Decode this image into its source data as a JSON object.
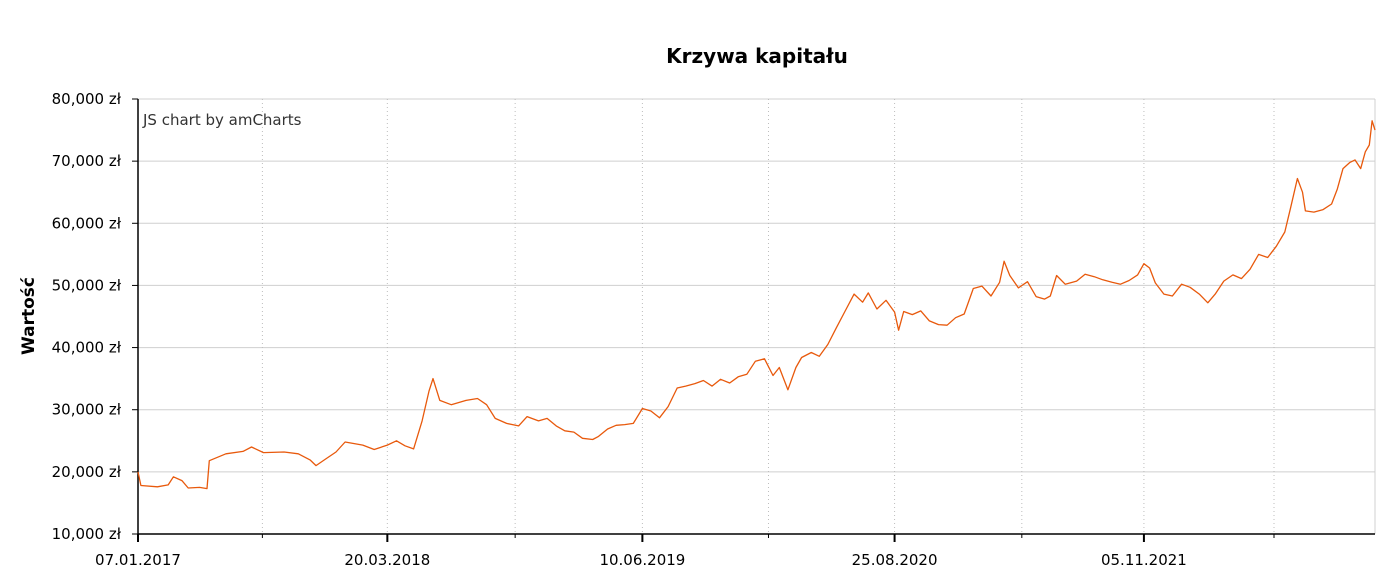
{
  "chart_data": {
    "type": "line",
    "title": "Krzywa kapitału",
    "xlabel": "",
    "ylabel": "Wartość",
    "credit": "JS chart by amCharts",
    "ylim": [
      10000,
      80000
    ],
    "y_ticks": [
      {
        "value": 80000,
        "label": "80,000 zł"
      },
      {
        "value": 70000,
        "label": "70,000 zł"
      },
      {
        "value": 60000,
        "label": "60,000 zł"
      },
      {
        "value": 50000,
        "label": "50,000 zł"
      },
      {
        "value": 40000,
        "label": "40,000 zł"
      },
      {
        "value": 30000,
        "label": "30,000 zł"
      },
      {
        "value": 20000,
        "label": "20,000 zł"
      },
      {
        "value": 10000,
        "label": "10,000 zł"
      }
    ],
    "xlim": [
      "2017-01-07",
      "2022-12-15"
    ],
    "x_ticks": [
      {
        "date": "2017-01-07",
        "label": "07.01.2017"
      },
      {
        "date": "2018-03-20",
        "label": "20.03.2018"
      },
      {
        "date": "2019-06-10",
        "label": "10.06.2019"
      },
      {
        "date": "2020-08-25",
        "label": "25.08.2020"
      },
      {
        "date": "2021-11-05",
        "label": "05.11.2021"
      }
    ],
    "minor_grid_dates": [
      "2017-08-13",
      "2018-10-30",
      "2020-01-17",
      "2021-04-05",
      "2022-06-21"
    ],
    "grid": true,
    "line_color": "#e8590c",
    "series": [
      {
        "name": "",
        "points": [
          [
            "2017-01-07",
            20000
          ],
          [
            "2017-01-12",
            17800
          ],
          [
            "2017-02-10",
            17600
          ],
          [
            "2017-03-01",
            17900
          ],
          [
            "2017-03-10",
            19200
          ],
          [
            "2017-03-25",
            18600
          ],
          [
            "2017-04-05",
            17400
          ],
          [
            "2017-04-25",
            17500
          ],
          [
            "2017-05-08",
            17300
          ],
          [
            "2017-05-12",
            21800
          ],
          [
            "2017-06-10",
            22900
          ],
          [
            "2017-07-10",
            23300
          ],
          [
            "2017-07-25",
            24000
          ],
          [
            "2017-08-15",
            23100
          ],
          [
            "2017-09-20",
            23200
          ],
          [
            "2017-10-15",
            22900
          ],
          [
            "2017-11-05",
            21900
          ],
          [
            "2017-11-15",
            21000
          ],
          [
            "2017-12-01",
            22000
          ],
          [
            "2017-12-20",
            23200
          ],
          [
            "2018-01-05",
            24800
          ],
          [
            "2018-02-05",
            24300
          ],
          [
            "2018-02-25",
            23600
          ],
          [
            "2018-03-20",
            24300
          ],
          [
            "2018-04-05",
            25000
          ],
          [
            "2018-04-20",
            24200
          ],
          [
            "2018-05-05",
            23700
          ],
          [
            "2018-05-20",
            28200
          ],
          [
            "2018-06-01",
            33000
          ],
          [
            "2018-06-08",
            35000
          ],
          [
            "2018-06-20",
            31500
          ],
          [
            "2018-07-10",
            30800
          ],
          [
            "2018-08-05",
            31500
          ],
          [
            "2018-08-25",
            31800
          ],
          [
            "2018-09-10",
            30800
          ],
          [
            "2018-09-25",
            28600
          ],
          [
            "2018-10-15",
            27800
          ],
          [
            "2018-11-05",
            27400
          ],
          [
            "2018-11-20",
            28900
          ],
          [
            "2018-12-10",
            28200
          ],
          [
            "2018-12-25",
            28600
          ],
          [
            "2019-01-10",
            27400
          ],
          [
            "2019-01-25",
            26600
          ],
          [
            "2019-02-10",
            26400
          ],
          [
            "2019-02-25",
            25400
          ],
          [
            "2019-03-15",
            25200
          ],
          [
            "2019-03-25",
            25700
          ],
          [
            "2019-04-10",
            26900
          ],
          [
            "2019-04-25",
            27500
          ],
          [
            "2019-05-10",
            27600
          ],
          [
            "2019-05-25",
            27800
          ],
          [
            "2019-06-10",
            30200
          ],
          [
            "2019-06-25",
            29800
          ],
          [
            "2019-07-10",
            28700
          ],
          [
            "2019-07-25",
            30500
          ],
          [
            "2019-08-10",
            33500
          ],
          [
            "2019-08-25",
            33800
          ],
          [
            "2019-09-10",
            34200
          ],
          [
            "2019-09-25",
            34700
          ],
          [
            "2019-10-10",
            33800
          ],
          [
            "2019-10-25",
            34900
          ],
          [
            "2019-11-10",
            34300
          ],
          [
            "2019-11-25",
            35300
          ],
          [
            "2019-12-10",
            35700
          ],
          [
            "2019-12-25",
            37800
          ],
          [
            "2020-01-10",
            38200
          ],
          [
            "2020-01-25",
            35500
          ],
          [
            "2020-02-05",
            36800
          ],
          [
            "2020-02-20",
            33200
          ],
          [
            "2020-03-05",
            36800
          ],
          [
            "2020-03-15",
            38400
          ],
          [
            "2020-04-01",
            39200
          ],
          [
            "2020-04-15",
            38600
          ],
          [
            "2020-04-30",
            40500
          ],
          [
            "2020-05-15",
            43200
          ],
          [
            "2020-05-30",
            45800
          ],
          [
            "2020-06-15",
            48600
          ],
          [
            "2020-06-30",
            47300
          ],
          [
            "2020-07-10",
            48800
          ],
          [
            "2020-07-25",
            46200
          ],
          [
            "2020-08-10",
            47600
          ],
          [
            "2020-08-25",
            45700
          ],
          [
            "2020-09-01",
            42800
          ],
          [
            "2020-09-10",
            45800
          ],
          [
            "2020-09-25",
            45300
          ],
          [
            "2020-10-10",
            45900
          ],
          [
            "2020-10-25",
            44300
          ],
          [
            "2020-11-10",
            43700
          ],
          [
            "2020-11-25",
            43600
          ],
          [
            "2020-12-10",
            44800
          ],
          [
            "2020-12-25",
            45400
          ],
          [
            "2021-01-10",
            49500
          ],
          [
            "2021-01-25",
            49900
          ],
          [
            "2021-02-10",
            48300
          ],
          [
            "2021-02-25",
            50500
          ],
          [
            "2021-03-05",
            53900
          ],
          [
            "2021-03-15",
            51600
          ],
          [
            "2021-03-30",
            49600
          ],
          [
            "2021-04-15",
            50600
          ],
          [
            "2021-04-30",
            48200
          ],
          [
            "2021-05-15",
            47800
          ],
          [
            "2021-05-25",
            48300
          ],
          [
            "2021-06-05",
            51600
          ],
          [
            "2021-06-20",
            50200
          ],
          [
            "2021-07-10",
            50700
          ],
          [
            "2021-07-25",
            51800
          ],
          [
            "2021-08-10",
            51400
          ],
          [
            "2021-08-25",
            50900
          ],
          [
            "2021-09-10",
            50500
          ],
          [
            "2021-09-25",
            50200
          ],
          [
            "2021-10-10",
            50800
          ],
          [
            "2021-10-25",
            51700
          ],
          [
            "2021-11-05",
            53500
          ],
          [
            "2021-11-15",
            52800
          ],
          [
            "2021-11-25",
            50400
          ],
          [
            "2021-12-10",
            48600
          ],
          [
            "2021-12-25",
            48300
          ],
          [
            "2022-01-10",
            50200
          ],
          [
            "2022-01-25",
            49700
          ],
          [
            "2022-02-10",
            48600
          ],
          [
            "2022-02-25",
            47200
          ],
          [
            "2022-03-10",
            48600
          ],
          [
            "2022-03-25",
            50700
          ],
          [
            "2022-04-10",
            51700
          ],
          [
            "2022-04-25",
            51100
          ],
          [
            "2022-05-10",
            52600
          ],
          [
            "2022-05-25",
            55000
          ],
          [
            "2022-06-10",
            54500
          ],
          [
            "2022-06-25",
            56300
          ],
          [
            "2022-07-10",
            58600
          ],
          [
            "2022-07-20",
            62500
          ],
          [
            "2022-08-01",
            67200
          ],
          [
            "2022-08-10",
            65000
          ],
          [
            "2022-08-15",
            62000
          ],
          [
            "2022-08-30",
            61800
          ],
          [
            "2022-09-15",
            62200
          ],
          [
            "2022-09-30",
            63100
          ],
          [
            "2022-10-10",
            65500
          ],
          [
            "2022-10-20",
            68800
          ],
          [
            "2022-11-01",
            69800
          ],
          [
            "2022-11-10",
            70200
          ],
          [
            "2022-11-20",
            68800
          ],
          [
            "2022-11-28",
            71500
          ],
          [
            "2022-12-05",
            72600
          ],
          [
            "2022-12-10",
            76500
          ],
          [
            "2022-12-15",
            75000
          ]
        ]
      }
    ]
  }
}
